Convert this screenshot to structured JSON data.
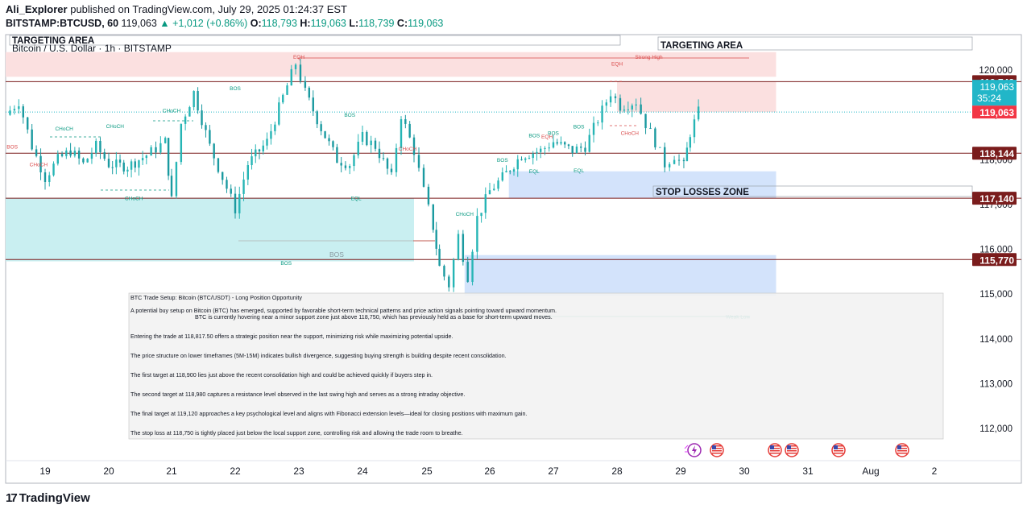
{
  "header": {
    "author": "Ali_Explorer",
    "published_text": "published on TradingView.com, July 29, 2025 01:24:37 EST",
    "symbol": "BITSTAMP:BTCUSD, 60",
    "last": "119,063",
    "change": "+1,012 (+0.86%)",
    "o_label": "O:",
    "o": "118,793",
    "h_label": "H:",
    "h": "119,063",
    "l_label": "L:",
    "l": "118,739",
    "c_label": "C:",
    "c": "119,063"
  },
  "pane_title": "Bitcoin / U.S. Dollar · 1h · BITSTAMP",
  "footer": {
    "brand": "TradingView",
    "logo_glyph": "17"
  },
  "colors": {
    "up": "#089981",
    "down": "#26a69a",
    "candle": "#26b5b5",
    "red_zone": "#fbe0e0",
    "blue_zone": "#d3e3fb",
    "cyan_zone": "#c9eff1",
    "level_line": "#7a1c1c",
    "price_tag": "#f23645",
    "last_tag": "#22b6c8"
  },
  "chart_data": {
    "type": "candlestick",
    "title": "Bitcoin / U.S. Dollar · 1h · BITSTAMP",
    "x_ticks": [
      "19",
      "20",
      "21",
      "22",
      "23",
      "24",
      "25",
      "26",
      "27",
      "28",
      "29",
      "30",
      "31",
      "Aug",
      "2"
    ],
    "y_ticks": [
      112000,
      113000,
      114000,
      115000,
      116000,
      117000,
      118000,
      119000,
      120000
    ],
    "y_tick_labels": [
      "112,000",
      "113,000",
      "114,000",
      "115,000",
      "116,000",
      "117,000",
      "118,000",
      "119,000",
      "120,000"
    ],
    "ylim": [
      111450,
      120400
    ],
    "xlim_days": [
      18.4,
      2.5
    ],
    "price_levels": [
      {
        "value": 119742,
        "label": "119,742",
        "color": "#7a1c1c"
      },
      {
        "value": 118144,
        "label": "118,144",
        "color": "#7a1c1c"
      },
      {
        "value": 117140,
        "label": "117,140",
        "color": "#7a1c1c"
      },
      {
        "value": 115770,
        "label": "115,770",
        "color": "#7a1c1c"
      }
    ],
    "last_price": {
      "value": 119063,
      "label": "119,063",
      "countdown": "35:24"
    },
    "zones": [
      {
        "name": "targeting-area-left",
        "label": "TARGETING AREA",
        "from_day": 18.4,
        "to_day": 28.0,
        "y_top": 120400,
        "y_bottom": 119850,
        "color": "red"
      },
      {
        "name": "targeting-area-right",
        "label": "TARGETING AREA",
        "from_day": 28.0,
        "to_day": 30.5,
        "y_top": 120400,
        "y_bottom": 119850,
        "color": "red"
      },
      {
        "name": "supply-zone",
        "label": "",
        "from_day": 28.0,
        "to_day": 30.5,
        "y_top": 119742,
        "y_bottom": 119063,
        "color": "red"
      },
      {
        "name": "stop-losses-zone",
        "label": "STOP LOSSES ZONE",
        "from_day": 26.3,
        "to_day": 30.5,
        "y_top": 117740,
        "y_bottom": 117140,
        "color": "blue"
      },
      {
        "name": "demand-zone",
        "label": "",
        "from_day": 25.6,
        "to_day": 30.5,
        "y_top": 115870,
        "y_bottom": 114960,
        "color": "blue"
      },
      {
        "name": "cyan-zone",
        "label": "BOS",
        "from_day": 18.4,
        "to_day": 24.8,
        "y_top": 117140,
        "y_bottom": 115730,
        "color": "cyan"
      }
    ],
    "annotations": [
      {
        "text": "EQH",
        "day": 23.0,
        "value": 120250
      },
      {
        "text": "Strong High",
        "day": 28.5,
        "value": 120250
      },
      {
        "text": "EQH",
        "day": 28.0,
        "value": 120100
      },
      {
        "text": "BOS",
        "day": 22.0,
        "value": 119550
      },
      {
        "text": "CHoCH",
        "day": 21.0,
        "value": 119060
      },
      {
        "text": "CHoCH",
        "day": 20.1,
        "value": 118710
      },
      {
        "text": "CHoCH",
        "day": 19.3,
        "value": 118650
      },
      {
        "text": "BOS",
        "day": 18.5,
        "value": 118250
      },
      {
        "text": "CHoCH",
        "day": 18.9,
        "value": 117850
      },
      {
        "text": "CHoCH",
        "day": 20.4,
        "value": 117100
      },
      {
        "text": "BOS",
        "day": 23.8,
        "value": 118960
      },
      {
        "text": "EQL",
        "day": 23.9,
        "value": 117100
      },
      {
        "text": "CHoCH",
        "day": 24.7,
        "value": 118200
      },
      {
        "text": "BOS",
        "day": 26.2,
        "value": 117950
      },
      {
        "text": "BOS",
        "day": 26.7,
        "value": 118500
      },
      {
        "text": "EQH",
        "day": 26.9,
        "value": 118470
      },
      {
        "text": "BOS",
        "day": 27.0,
        "value": 118550
      },
      {
        "text": "BOS",
        "day": 27.4,
        "value": 118700
      },
      {
        "text": "EQL",
        "day": 26.7,
        "value": 117700
      },
      {
        "text": "EQL",
        "day": 27.4,
        "value": 117720
      },
      {
        "text": "CHoCH",
        "day": 28.2,
        "value": 118550
      },
      {
        "text": "CHoCH",
        "day": 25.6,
        "value": 116750
      },
      {
        "text": "BOS",
        "day": 22.8,
        "value": 115650
      },
      {
        "text": "Weak Low",
        "day": 29.9,
        "value": 114450
      }
    ],
    "series": [
      {
        "type": "candles_summary",
        "points": [
          {
            "day": 18.4,
            "close": 119000
          },
          {
            "day": 18.6,
            "close": 119300
          },
          {
            "day": 18.8,
            "close": 118300
          },
          {
            "day": 19.0,
            "close": 117600
          },
          {
            "day": 19.2,
            "close": 118000
          },
          {
            "day": 19.4,
            "close": 118200
          },
          {
            "day": 19.6,
            "close": 117900
          },
          {
            "day": 19.8,
            "close": 118300
          },
          {
            "day": 20.0,
            "close": 117900
          },
          {
            "day": 20.3,
            "close": 117850
          },
          {
            "day": 20.6,
            "close": 118100
          },
          {
            "day": 20.9,
            "close": 118400
          },
          {
            "day": 21.0,
            "close": 117100
          },
          {
            "day": 21.15,
            "close": 118800
          },
          {
            "day": 21.35,
            "close": 119500
          },
          {
            "day": 21.6,
            "close": 118300
          },
          {
            "day": 21.8,
            "close": 117600
          },
          {
            "day": 22.0,
            "close": 116900
          },
          {
            "day": 22.2,
            "close": 117900
          },
          {
            "day": 22.5,
            "close": 118400
          },
          {
            "day": 22.75,
            "close": 119400
          },
          {
            "day": 22.95,
            "close": 120150
          },
          {
            "day": 23.1,
            "close": 119500
          },
          {
            "day": 23.35,
            "close": 118700
          },
          {
            "day": 23.6,
            "close": 118000
          },
          {
            "day": 23.8,
            "close": 117900
          },
          {
            "day": 24.0,
            "close": 118500
          },
          {
            "day": 24.2,
            "close": 118300
          },
          {
            "day": 24.45,
            "close": 117600
          },
          {
            "day": 24.6,
            "close": 119000
          },
          {
            "day": 24.8,
            "close": 118200
          },
          {
            "day": 24.95,
            "close": 117300
          },
          {
            "day": 25.1,
            "close": 116500
          },
          {
            "day": 25.2,
            "close": 115600
          },
          {
            "day": 25.35,
            "close": 115200
          },
          {
            "day": 25.5,
            "close": 116300
          },
          {
            "day": 25.65,
            "close": 115400
          },
          {
            "day": 25.8,
            "close": 116700
          },
          {
            "day": 26.0,
            "close": 117300
          },
          {
            "day": 26.2,
            "close": 117600
          },
          {
            "day": 26.5,
            "close": 118100
          },
          {
            "day": 26.8,
            "close": 118200
          },
          {
            "day": 27.0,
            "close": 118400
          },
          {
            "day": 27.3,
            "close": 118200
          },
          {
            "day": 27.5,
            "close": 118300
          },
          {
            "day": 27.7,
            "close": 118900
          },
          {
            "day": 27.9,
            "close": 119500
          },
          {
            "day": 28.05,
            "close": 119200
          },
          {
            "day": 28.3,
            "close": 119300
          },
          {
            "day": 28.45,
            "close": 118800
          },
          {
            "day": 28.6,
            "close": 118400
          },
          {
            "day": 28.75,
            "close": 117900
          },
          {
            "day": 28.9,
            "close": 118100
          },
          {
            "day": 29.05,
            "close": 117850
          },
          {
            "day": 29.15,
            "close": 118600
          },
          {
            "day": 29.28,
            "close": 119063
          }
        ]
      }
    ]
  },
  "notes": {
    "title": "BTC Trade Setup: Bitcoin (BTC/USDT) - Long Position Opportunity",
    "p1a": "A potential buy setup on Bitcoin (BTC) has emerged, supported by favorable short-term technical patterns and price action signals pointing toward upward momentum.",
    "p1b": "BTC is currently hovering near a minor support zone just above 118,750, which has previously held as a base for short-term upward moves.",
    "p2": "Entering the trade at 118,817.50 offers a strategic position near the support, minimizing risk while maximizing potential upside.",
    "p3": "The price structure on lower timeframes (5M-15M) indicates bullish divergence, suggesting buying strength is building despite recent consolidation.",
    "p4": "The first target at 118,900 lies just above the recent consolidation high and could be achieved quickly if buyers step in.",
    "p5": "The second target at 118,980 captures a resistance level observed in the last swing high and serves as a strong intraday objective.",
    "p6": "The final target at 119,120 approaches a key psychological level and aligns with Fibonacci extension levels—ideal for closing positions with maximum gain.",
    "p7": "The stop loss at 118,750 is tightly placed just below the local support zone, controlling risk and allowing the trade room to breathe."
  },
  "events": {
    "icons": [
      "lightning-icon",
      "us-flag-icon",
      "us-flag-icon",
      "us-flag-icon",
      "us-flag-icon",
      "us-flag-icon"
    ]
  }
}
